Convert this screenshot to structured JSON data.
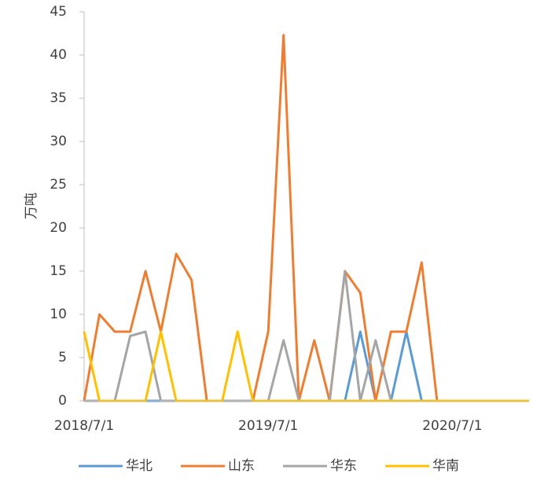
{
  "chart_data": {
    "type": "line",
    "y_label": "万吨",
    "categories": [
      "2018/7/1",
      null,
      null,
      null,
      null,
      null,
      null,
      null,
      null,
      null,
      null,
      null,
      "2019/7/1",
      null,
      null,
      null,
      null,
      null,
      null,
      null,
      null,
      null,
      null,
      null,
      "2020/7/1",
      null,
      null,
      null,
      null,
      null
    ],
    "series": [
      {
        "name": "华北",
        "color": "#5b9bd5",
        "values": [
          0,
          0,
          0,
          0,
          0,
          0,
          0,
          0,
          0,
          0,
          0,
          0,
          0,
          0,
          0,
          0,
          0,
          0,
          8,
          0,
          0,
          8,
          0,
          0,
          0,
          0,
          0,
          0,
          0,
          0
        ]
      },
      {
        "name": "山东",
        "color": "#ed7d31",
        "values": [
          0,
          10,
          8,
          8,
          15,
          8,
          17,
          14,
          0,
          0,
          0,
          0,
          8,
          42.3,
          0,
          7,
          0,
          15,
          12.5,
          0,
          8,
          8,
          16,
          0,
          0,
          0,
          0,
          0,
          0,
          0
        ]
      },
      {
        "name": "华东",
        "color": "#a5a5a5",
        "values": [
          0,
          0,
          0,
          7.5,
          8,
          0,
          0,
          0,
          0,
          0,
          0,
          0,
          0,
          7,
          0,
          0,
          0,
          15,
          0,
          7,
          0,
          0,
          0,
          0,
          0,
          0,
          0,
          0,
          0,
          0
        ]
      },
      {
        "name": "华南",
        "color": "#ffc000",
        "values": [
          8,
          0,
          0,
          0,
          0,
          8,
          0,
          0,
          0,
          0,
          8,
          0,
          0,
          0,
          0,
          0,
          0,
          0,
          0,
          0,
          0,
          0,
          0,
          0,
          0,
          0,
          0,
          0,
          0,
          0
        ]
      }
    ],
    "ylim": [
      0,
      45
    ],
    "yticks": [
      0,
      5,
      10,
      15,
      20,
      25,
      30,
      35,
      40,
      45
    ],
    "legend": "bottom"
  }
}
